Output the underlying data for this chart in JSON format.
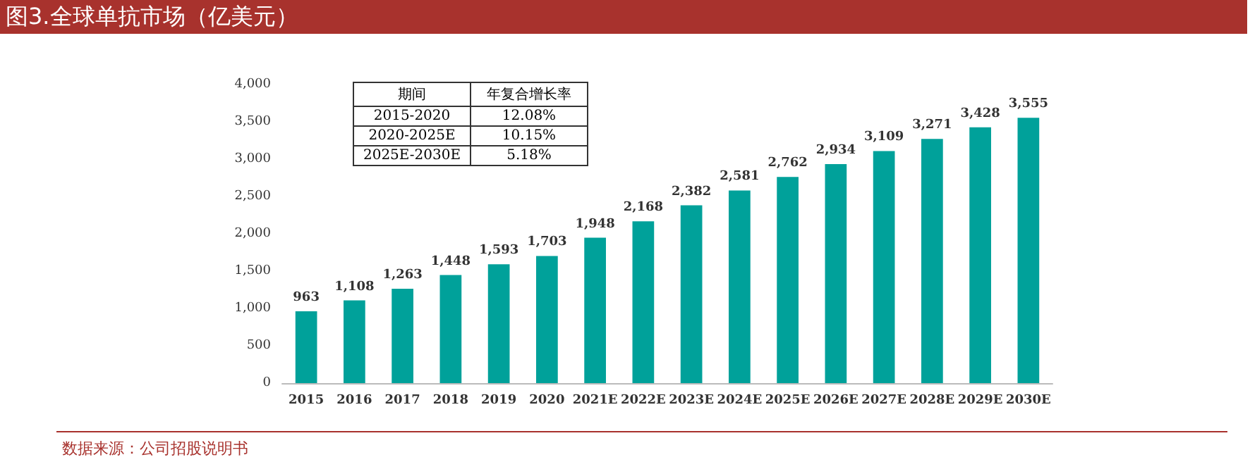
{
  "chart_data": {
    "type": "bar",
    "title": "图3.全球单抗市场（亿美元）",
    "categories": [
      "2015",
      "2016",
      "2017",
      "2018",
      "2019",
      "2020",
      "2021E",
      "2022E",
      "2023E",
      "2024E",
      "2025E",
      "2026E",
      "2027E",
      "2028E",
      "2029E",
      "2030E"
    ],
    "values": [
      963,
      1108,
      1263,
      1448,
      1593,
      1703,
      1948,
      2168,
      2382,
      2581,
      2762,
      2934,
      3109,
      3271,
      3428,
      3555
    ],
    "color": "#00a19a",
    "ylim": [
      0,
      4000
    ],
    "yticks": [
      {
        "value": 0,
        "label": "0"
      },
      {
        "value": 500,
        "label": "500"
      },
      {
        "value": 1000,
        "label": "1,000"
      },
      {
        "value": 1500,
        "label": "1,500"
      },
      {
        "value": 2000,
        "label": "2,000"
      },
      {
        "value": 2500,
        "label": "2,500"
      },
      {
        "value": 3000,
        "label": "3,000"
      },
      {
        "value": 3500,
        "label": "3,500"
      },
      {
        "value": 4000,
        "label": "4,000"
      }
    ],
    "grid": false,
    "value_labels": [
      "963",
      "1,108",
      "1,263",
      "1,448",
      "1,593",
      "1,703",
      "1,948",
      "2,168",
      "2,382",
      "2,581",
      "2,762",
      "2,934",
      "3,109",
      "3,271",
      "3,428",
      "3,555"
    ],
    "annotations": [
      "期间",
      "年复合增长率",
      "2015-2020",
      "12.08%",
      "2020-2025E",
      "10.15%",
      "2025E-2030E",
      "5.18%",
      "数据来源：公司招股说明书"
    ]
  }
}
